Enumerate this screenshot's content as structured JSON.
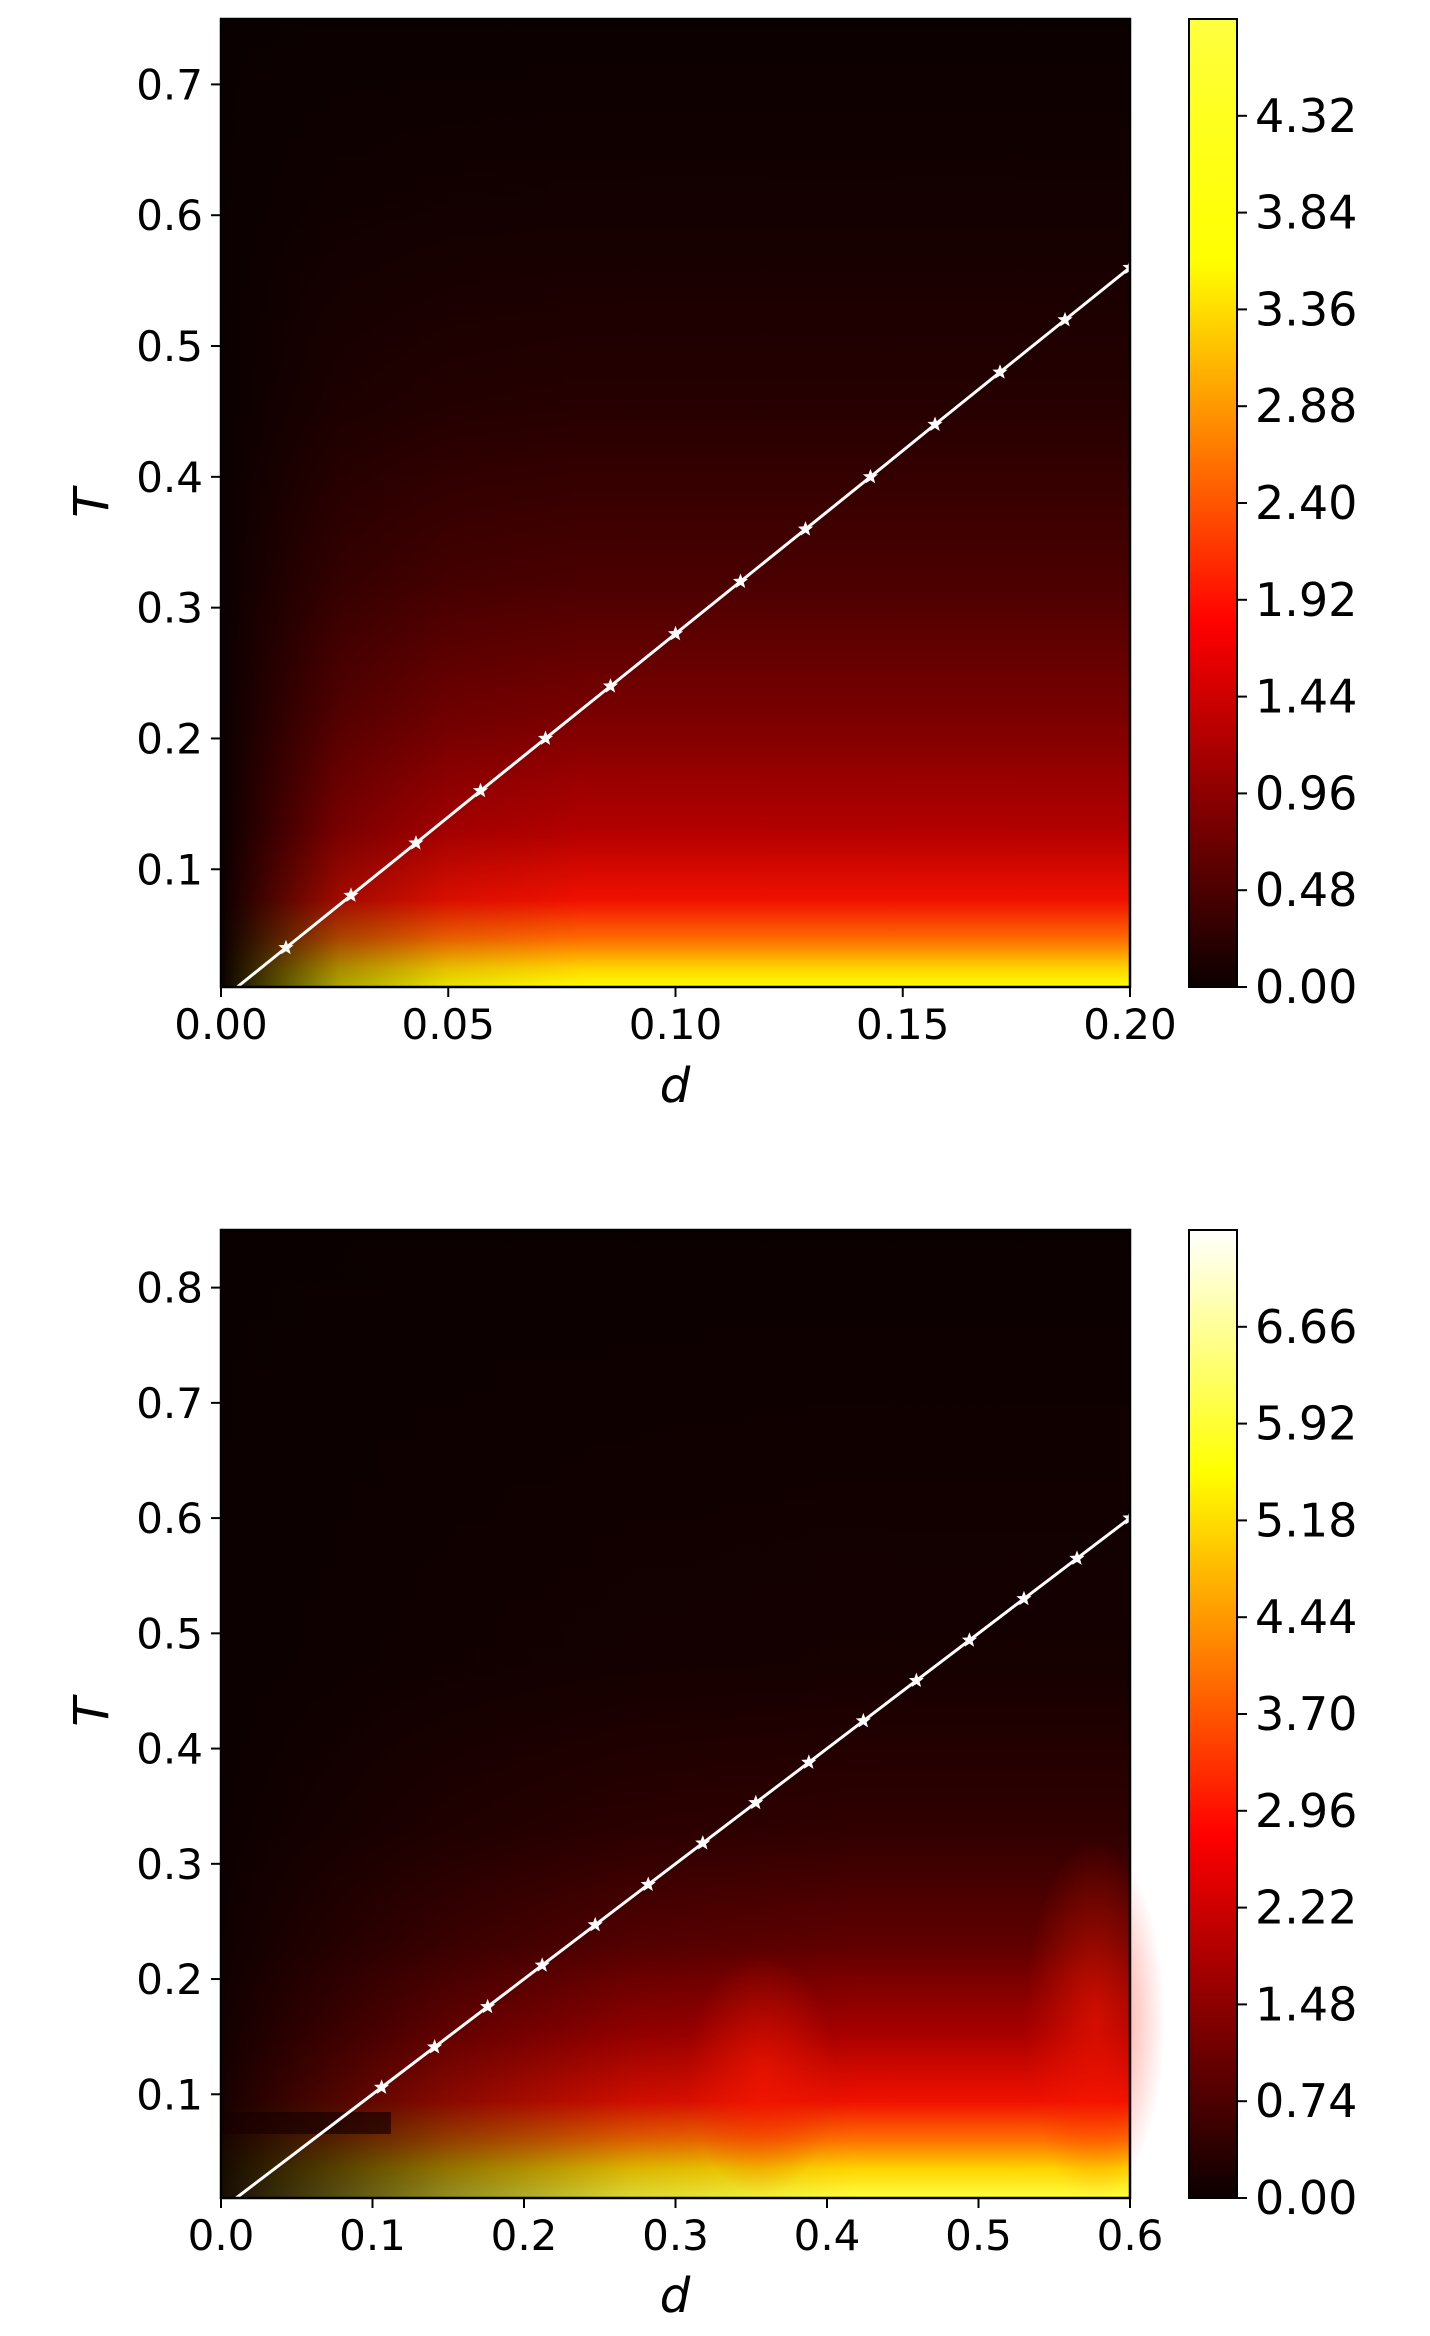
{
  "chart_data": [
    {
      "type": "heatmap",
      "xlabel": "d",
      "ylabel": "T",
      "xlim": [
        0.0,
        0.2
      ],
      "ylim": [
        0.01,
        0.75
      ],
      "x_ticks": [
        "0.00",
        "0.05",
        "0.10",
        "0.15",
        "0.20"
      ],
      "x_tick_values": [
        0.0,
        0.05,
        0.1,
        0.15,
        0.2
      ],
      "y_ticks": [
        "0.1",
        "0.2",
        "0.3",
        "0.4",
        "0.5",
        "0.6",
        "0.7"
      ],
      "y_tick_values": [
        0.1,
        0.2,
        0.3,
        0.4,
        0.5,
        0.6,
        0.7
      ],
      "colorbar": {
        "min": 0.0,
        "max": 4.8,
        "ticks": [
          "0.00",
          "0.48",
          "0.96",
          "1.44",
          "1.92",
          "2.40",
          "2.88",
          "3.36",
          "3.84",
          "4.32"
        ],
        "tick_values": [
          0.0,
          0.48,
          0.96,
          1.44,
          1.92,
          2.4,
          2.88,
          3.36,
          3.84,
          4.32
        ],
        "colormap": "hot"
      },
      "line": {
        "color": "#ffffff",
        "marker": "star",
        "x": [
          0.0143,
          0.0286,
          0.0429,
          0.0571,
          0.0714,
          0.0857,
          0.1,
          0.1143,
          0.1286,
          0.1429,
          0.1571,
          0.1714,
          0.1857,
          0.2
        ],
        "y": [
          0.04,
          0.08,
          0.12,
          0.16,
          0.2,
          0.24,
          0.28,
          0.32,
          0.36,
          0.4,
          0.44,
          0.48,
          0.52,
          0.56
        ]
      }
    },
    {
      "type": "heatmap",
      "xlabel": "d",
      "ylabel": "T",
      "xlim": [
        0.0,
        0.6
      ],
      "ylim": [
        0.01,
        0.85
      ],
      "x_ticks": [
        "0.0",
        "0.1",
        "0.2",
        "0.3",
        "0.4",
        "0.5",
        "0.6"
      ],
      "x_tick_values": [
        0.0,
        0.1,
        0.2,
        0.3,
        0.4,
        0.5,
        0.6
      ],
      "y_ticks": [
        "0.1",
        "0.2",
        "0.3",
        "0.4",
        "0.5",
        "0.6",
        "0.7",
        "0.8"
      ],
      "y_tick_values": [
        0.1,
        0.2,
        0.3,
        0.4,
        0.5,
        0.6,
        0.7,
        0.8
      ],
      "colorbar": {
        "min": 0.0,
        "max": 7.4,
        "ticks": [
          "0.00",
          "0.74",
          "1.48",
          "2.22",
          "2.96",
          "3.70",
          "4.44",
          "5.18",
          "5.92",
          "6.66"
        ],
        "tick_values": [
          0.0,
          0.74,
          1.48,
          2.22,
          2.96,
          3.7,
          4.44,
          5.18,
          5.92,
          6.66
        ],
        "colormap": "hot"
      },
      "line": {
        "color": "#ffffff",
        "marker": "star",
        "x": [
          0.106,
          0.141,
          0.176,
          0.212,
          0.247,
          0.282,
          0.318,
          0.353,
          0.388,
          0.424,
          0.459,
          0.494,
          0.53,
          0.565,
          0.6
        ],
        "y": [
          0.106,
          0.141,
          0.176,
          0.212,
          0.247,
          0.282,
          0.318,
          0.353,
          0.388,
          0.424,
          0.459,
          0.494,
          0.53,
          0.565,
          0.6
        ]
      }
    }
  ]
}
